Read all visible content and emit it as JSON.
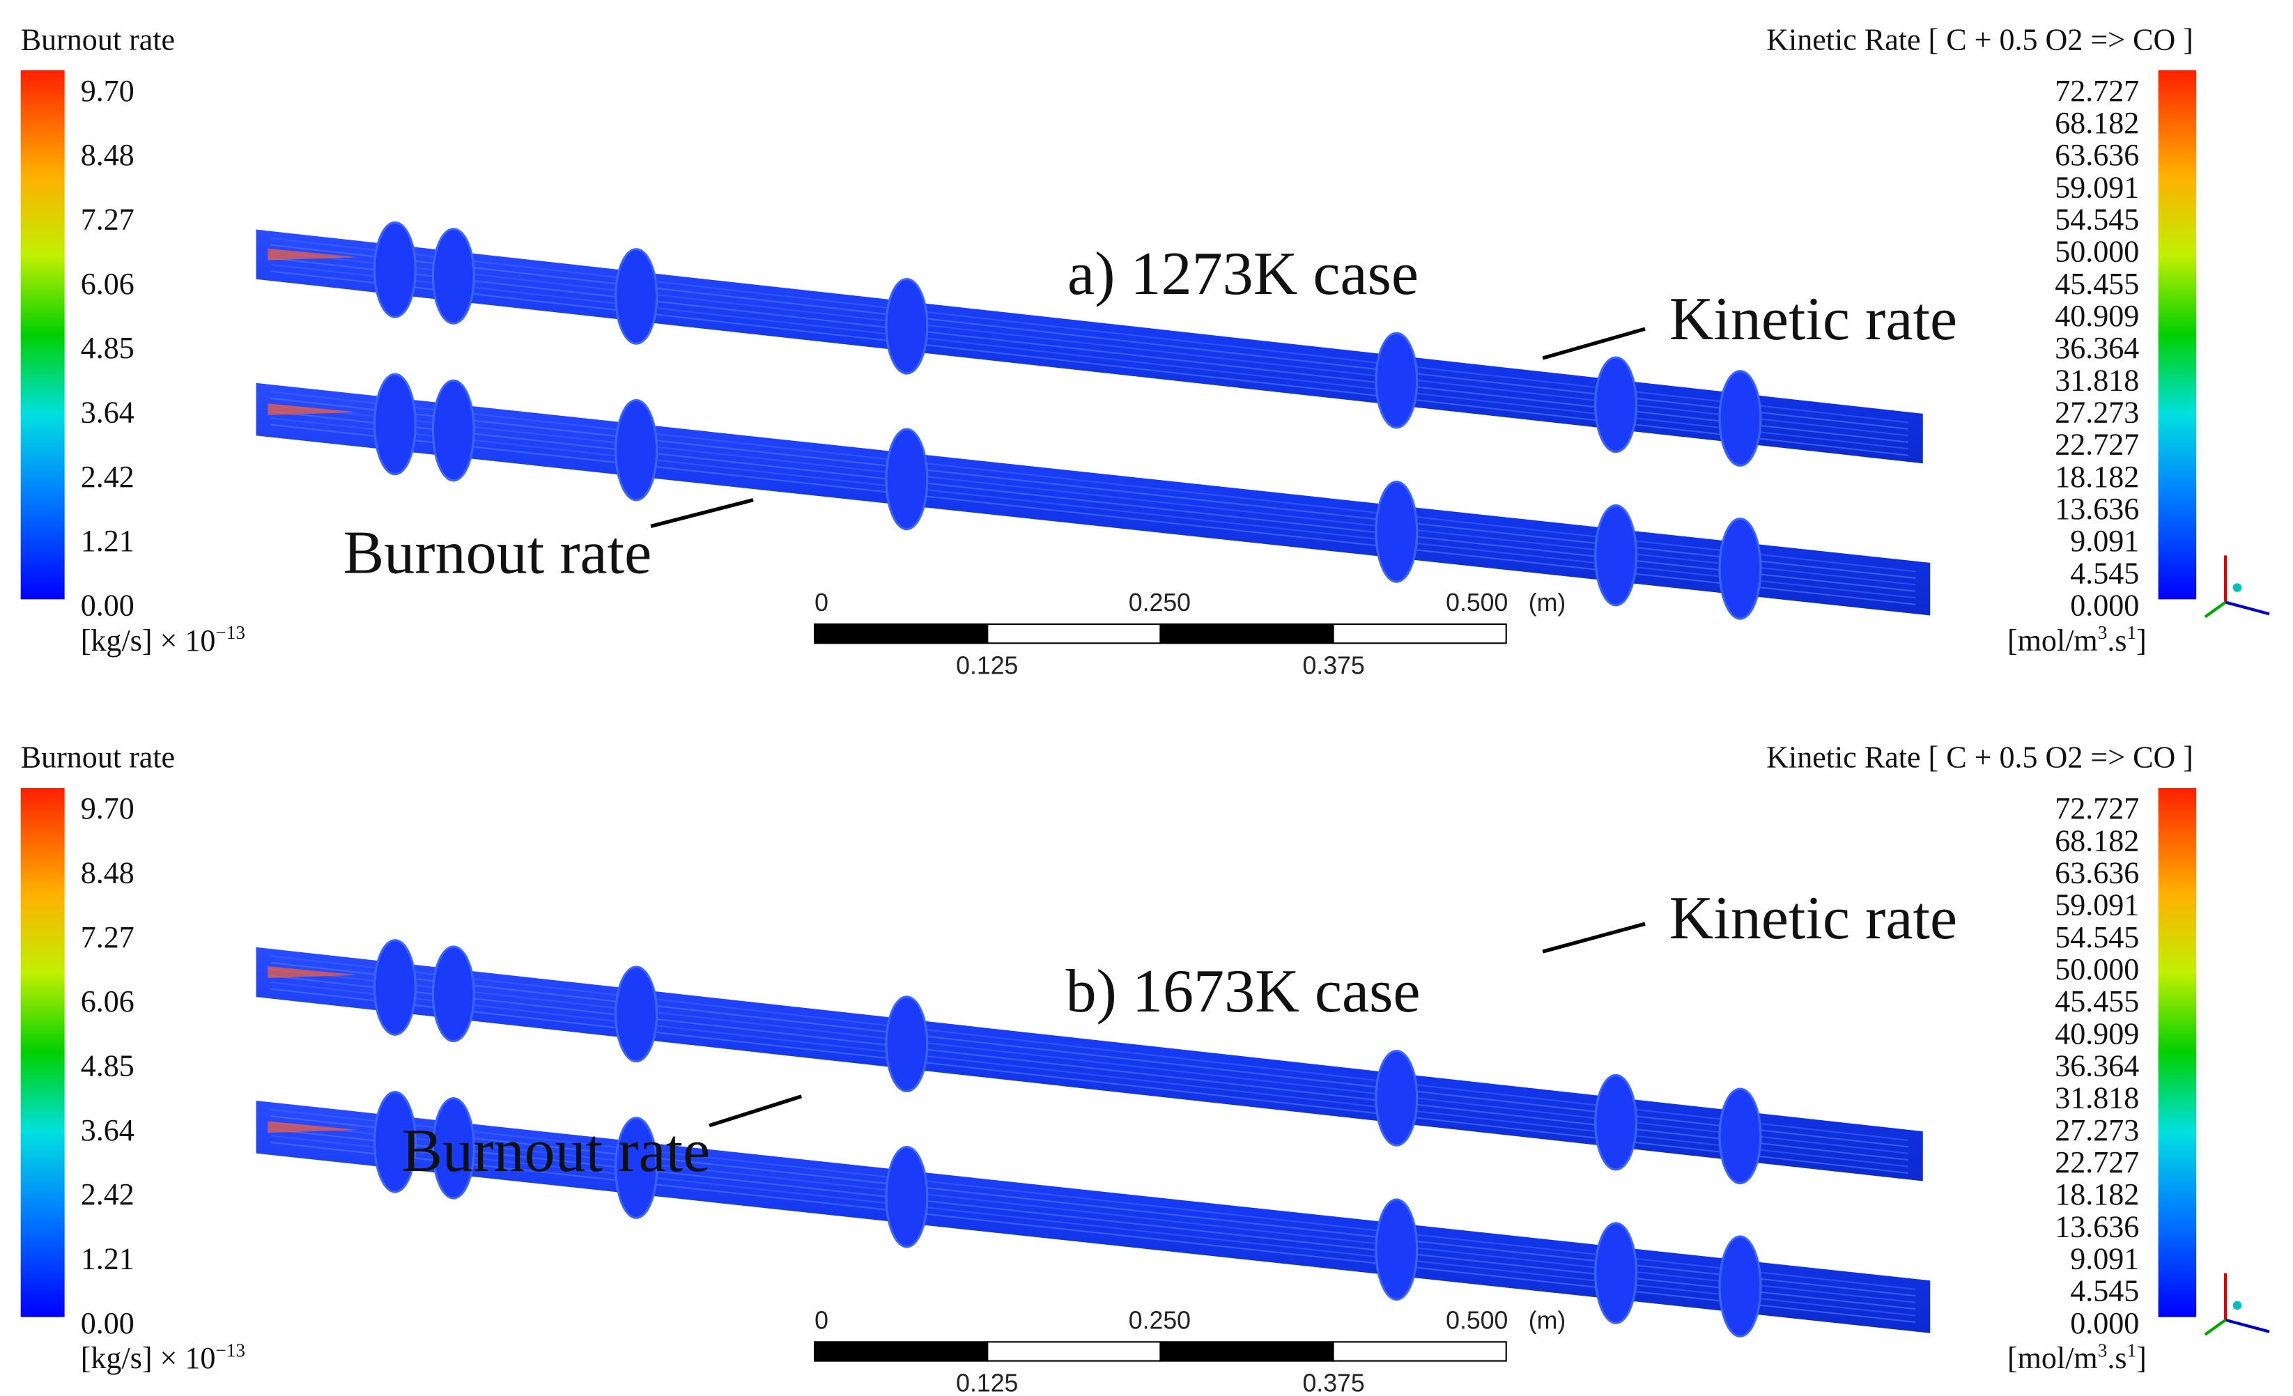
{
  "panels": [
    {
      "case_label": "a) 1273K case",
      "left_legend": {
        "title": "Burnout rate",
        "ticks": [
          "9.70",
          "8.48",
          "7.27",
          "6.06",
          "4.85",
          "3.64",
          "2.42",
          "1.21",
          "0.00"
        ],
        "unit": [
          "[kg/s] × 10",
          "−13"
        ]
      },
      "right_legend": {
        "title": "Kinetic Rate [ C + 0.5 O2 => CO ]",
        "ticks": [
          "72.727",
          "68.182",
          "63.636",
          "59.091",
          "54.545",
          "50.000",
          "45.455",
          "40.909",
          "36.364",
          "31.818",
          "27.273",
          "22.727",
          "18.182",
          "13.636",
          "9.091",
          "4.545",
          "0.000"
        ],
        "unit": [
          "[mol/m",
          "3",
          ".s",
          "1",
          "]"
        ]
      },
      "annotations": {
        "kinetic": "Kinetic rate",
        "burnout": "Burnout rate"
      },
      "scale_bar": {
        "top": [
          "0",
          "0.250",
          "0.500"
        ],
        "unit": "(m)",
        "bottom": [
          "0.125",
          "0.375"
        ]
      }
    },
    {
      "case_label": "b) 1673K case",
      "left_legend": {
        "title": "Burnout rate",
        "ticks": [
          "9.70",
          "8.48",
          "7.27",
          "6.06",
          "4.85",
          "3.64",
          "2.42",
          "1.21",
          "0.00"
        ],
        "unit": [
          "[kg/s] × 10",
          "−13"
        ]
      },
      "right_legend": {
        "title": "Kinetic Rate [ C + 0.5 O2 => CO ]",
        "ticks": [
          "72.727",
          "68.182",
          "63.636",
          "59.091",
          "54.545",
          "50.000",
          "45.455",
          "40.909",
          "36.364",
          "31.818",
          "27.273",
          "22.727",
          "18.182",
          "13.636",
          "9.091",
          "4.545",
          "0.000"
        ],
        "unit": [
          "[mol/m",
          "3",
          ".s",
          "1",
          "]"
        ]
      },
      "annotations": {
        "kinetic": "Kinetic rate",
        "burnout": "Burnout rate"
      },
      "scale_bar": {
        "top": [
          "0",
          "0.250",
          "0.500"
        ],
        "unit": "(m)",
        "bottom": [
          "0.125",
          "0.375"
        ]
      }
    }
  ]
}
